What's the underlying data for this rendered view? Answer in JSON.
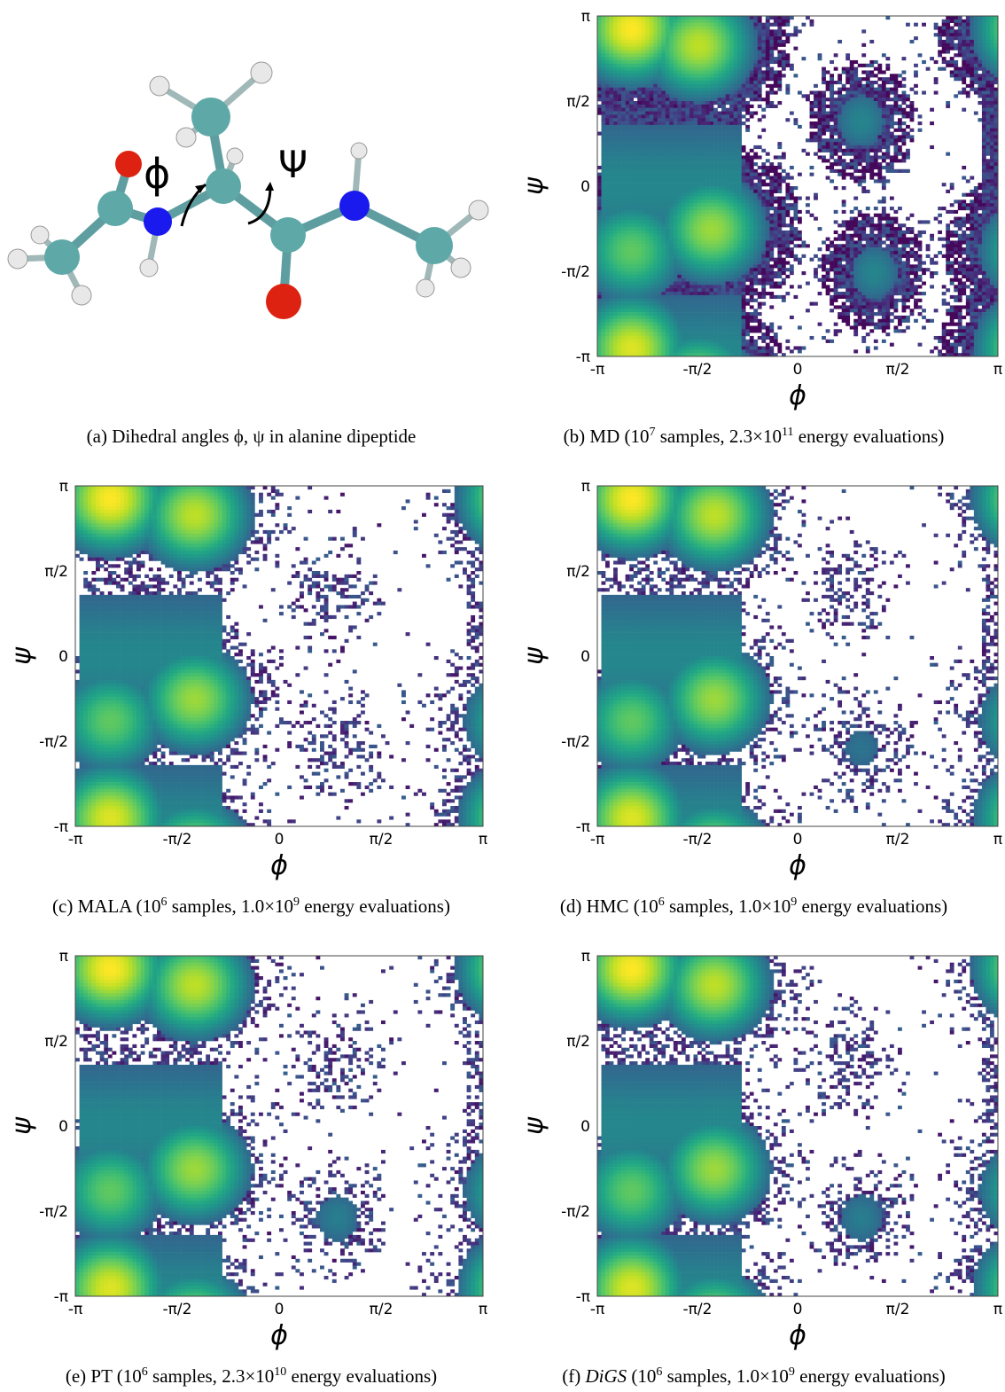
{
  "molecule": {
    "phi_label": "ϕ",
    "psi_label": "Ψ"
  },
  "captions": {
    "a": {
      "prefix": "(a)",
      "text": "Dihedral angles ϕ, ψ in alanine dipeptide"
    },
    "b": {
      "prefix": "(b)",
      "method": "MD",
      "samples_exp": "7",
      "evals_mant": "2.3",
      "evals_exp": "11"
    },
    "c": {
      "prefix": "(c)",
      "method": "MALA",
      "samples_exp": "6",
      "evals_mant": "1.0",
      "evals_exp": "9"
    },
    "d": {
      "prefix": "(d)",
      "method": "HMC",
      "samples_exp": "6",
      "evals_mant": "1.0",
      "evals_exp": "9"
    },
    "e": {
      "prefix": "(e)",
      "method": "PT",
      "samples_exp": "6",
      "evals_mant": "2.3",
      "evals_exp": "10"
    },
    "f": {
      "prefix": "(f)",
      "method": "DiGS",
      "samples_exp": "6",
      "evals_mant": "1.0",
      "evals_exp": "9"
    }
  },
  "caption_words": {
    "samples": "samples,",
    "evals": "energy evaluations)",
    "ten": "10",
    "times": "×"
  },
  "chart_data": [
    {
      "panel": "b",
      "type": "heatmap",
      "xlabel": "ϕ",
      "ylabel": "ψ",
      "xticks": [
        "-π",
        "-π/2",
        "0",
        "π/2",
        "π"
      ],
      "yticks": [
        "π",
        "π/2",
        "0",
        "-π/2",
        "-π"
      ],
      "xlim": [
        -3.1416,
        3.1416
      ],
      "ylim": [
        -3.1416,
        3.1416
      ],
      "colormap": "viridis",
      "empty_bins": "#ffffff",
      "modes": [
        [
          -2.6,
          2.9,
          1.0
        ],
        [
          -1.55,
          2.6,
          0.9
        ],
        [
          -1.35,
          -0.8,
          0.85
        ],
        [
          -2.6,
          -1.2,
          0.75
        ],
        [
          -2.6,
          -3.0,
          0.95
        ],
        [
          1.0,
          1.2,
          0.45
        ],
        [
          1.2,
          -1.6,
          0.45
        ],
        [
          3.0,
          2.8,
          0.4
        ]
      ],
      "sample_density": "high"
    },
    {
      "panel": "c",
      "type": "heatmap",
      "xlabel": "ϕ",
      "ylabel": "ψ",
      "xticks": [
        "-π",
        "-π/2",
        "0",
        "π/2",
        "π"
      ],
      "yticks": [
        "π",
        "π/2",
        "0",
        "-π/2",
        "-π"
      ],
      "xlim": [
        -3.1416,
        3.1416
      ],
      "ylim": [
        -3.1416,
        3.1416
      ],
      "colormap": "viridis",
      "empty_bins": "#ffffff",
      "modes": [
        [
          -2.6,
          2.9,
          1.0
        ],
        [
          -1.3,
          2.6,
          0.9
        ],
        [
          -1.3,
          -0.8,
          0.85
        ],
        [
          -2.6,
          -1.2,
          0.75
        ],
        [
          -2.6,
          -3.0,
          0.95
        ],
        [
          0.8,
          1.2,
          0.3
        ],
        [
          0.9,
          -1.8,
          0.3
        ]
      ],
      "sample_density": "medium"
    },
    {
      "panel": "d",
      "type": "heatmap",
      "xlabel": "ϕ",
      "ylabel": "ψ",
      "xticks": [
        "-π",
        "-π/2",
        "0",
        "π/2",
        "π"
      ],
      "yticks": [
        "π",
        "π/2",
        "0",
        "-π/2",
        "-π"
      ],
      "xlim": [
        -3.1416,
        3.1416
      ],
      "ylim": [
        -3.1416,
        3.1416
      ],
      "colormap": "viridis",
      "empty_bins": "#ffffff",
      "modes": [
        [
          -2.6,
          2.9,
          1.0
        ],
        [
          -1.3,
          2.6,
          0.9
        ],
        [
          -1.3,
          -0.8,
          0.85
        ],
        [
          -2.6,
          -1.2,
          0.75
        ],
        [
          -2.6,
          -3.0,
          0.95
        ],
        [
          0.8,
          1.2,
          0.3
        ],
        [
          1.0,
          -1.7,
          0.38
        ]
      ],
      "sample_density": "medium"
    },
    {
      "panel": "e",
      "type": "heatmap",
      "xlabel": "ϕ",
      "ylabel": "ψ",
      "xticks": [
        "-π",
        "-π/2",
        "0",
        "π/2",
        "π"
      ],
      "yticks": [
        "π",
        "π/2",
        "0",
        "-π/2",
        "-π"
      ],
      "xlim": [
        -3.1416,
        3.1416
      ],
      "ylim": [
        -3.1416,
        3.1416
      ],
      "colormap": "viridis",
      "empty_bins": "#ffffff",
      "modes": [
        [
          -2.6,
          2.9,
          1.0
        ],
        [
          -1.3,
          2.6,
          0.9
        ],
        [
          -1.3,
          -0.8,
          0.85
        ],
        [
          -2.6,
          -1.2,
          0.75
        ],
        [
          -2.6,
          -3.0,
          0.95
        ],
        [
          0.8,
          1.2,
          0.32
        ],
        [
          0.9,
          -1.7,
          0.42
        ]
      ],
      "sample_density": "medium"
    },
    {
      "panel": "f",
      "type": "heatmap",
      "xlabel": "ϕ",
      "ylabel": "ψ",
      "xticks": [
        "-π",
        "-π/2",
        "0",
        "π/2",
        "π"
      ],
      "yticks": [
        "π",
        "π/2",
        "0",
        "-π/2",
        "-π"
      ],
      "xlim": [
        -3.1416,
        3.1416
      ],
      "ylim": [
        -3.1416,
        3.1416
      ],
      "colormap": "viridis",
      "empty_bins": "#ffffff",
      "modes": [
        [
          -2.6,
          2.9,
          1.0
        ],
        [
          -1.3,
          2.6,
          0.9
        ],
        [
          -1.3,
          -0.8,
          0.85
        ],
        [
          -2.6,
          -1.2,
          0.75
        ],
        [
          -2.6,
          -3.0,
          0.95
        ],
        [
          0.8,
          1.2,
          0.32
        ],
        [
          1.0,
          -1.7,
          0.42
        ]
      ],
      "sample_density": "medium"
    }
  ]
}
